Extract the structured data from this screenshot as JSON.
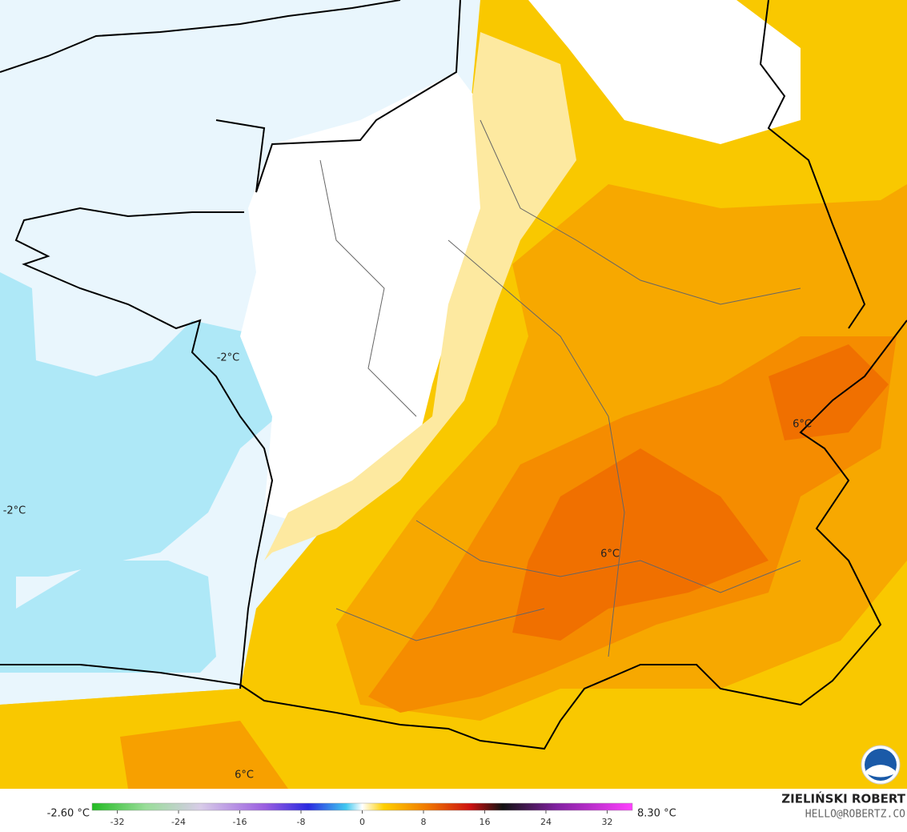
{
  "map": {
    "contour_labels": [
      "-2°C",
      "-2°C",
      "6°C",
      "6°C",
      "6°C"
    ]
  },
  "colorbar": {
    "min_label": "-2.60 °C",
    "max_label": "8.30 °C",
    "lim": [
      -35.3,
      35.3
    ],
    "ticks": [
      -32,
      -24,
      -16,
      -8,
      0,
      8,
      16,
      24,
      32
    ]
  },
  "credit": {
    "author": "ZIELIŃSKI ROBERT",
    "contact": "HELLO@ROBERTZ.CO"
  }
}
